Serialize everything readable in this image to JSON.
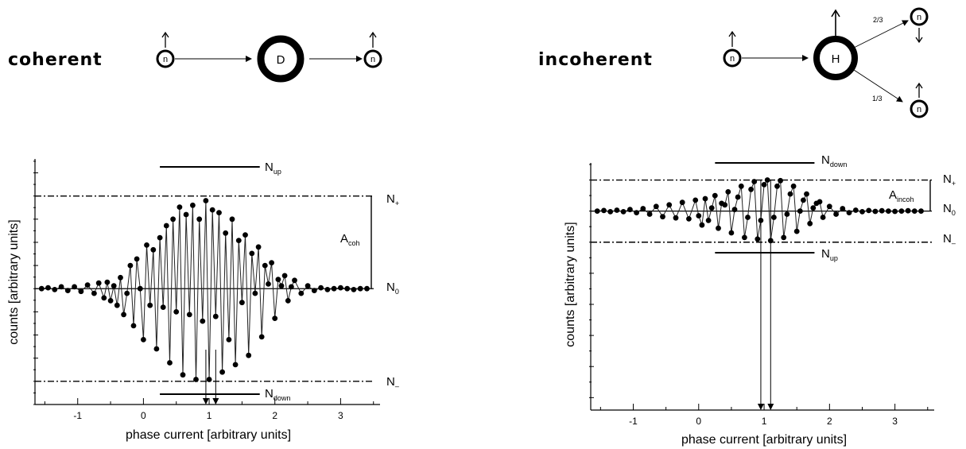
{
  "panels": {
    "coherent": {
      "title": "coherent",
      "target_node": "D",
      "neutron": "n",
      "lines": {
        "plus": "N",
        "plus_sub": "+",
        "zero": "N",
        "zero_sub": "0",
        "minus": "N",
        "minus_sub": "–",
        "bar_top": "N",
        "bar_top_sub": "up",
        "bar_bottom": "N",
        "bar_bottom_sub": "down",
        "amp": "A",
        "amp_sub": "coh"
      }
    },
    "incoherent": {
      "title": "incoherent",
      "target_node": "H",
      "neutron": "n",
      "branch_up": "2/3",
      "branch_down": "1/3",
      "lines": {
        "plus": "N",
        "plus_sub": "+",
        "zero": "N",
        "zero_sub": "0",
        "minus": "N",
        "minus_sub": "–",
        "bar_top": "N",
        "bar_top_sub": "down",
        "bar_bottom": "N",
        "bar_bottom_sub": "up",
        "amp": "A",
        "amp_sub": "incoh"
      }
    }
  },
  "chart_data": [
    {
      "type": "scatter",
      "title": "coherent",
      "xlabel": "phase current  [arbitrary units]",
      "ylabel": "counts  [arbitrary units]",
      "xlim": [
        -1.65,
        3.6
      ],
      "x_ticks": [
        -1,
        0,
        1,
        2,
        3
      ],
      "tick_labels": [
        "-1",
        "0",
        "1",
        "2",
        "3"
      ],
      "grid": false,
      "levels": {
        "N+": 1.0,
        "N0": 0.0,
        "N-": -1.0
      },
      "ylim": [
        -1.25,
        1.4
      ],
      "series": [
        {
          "x": [
            -1.55,
            -1.45,
            -1.35,
            -1.25,
            -1.15,
            -1.05,
            -0.95,
            -0.85,
            -0.75,
            -0.68,
            -0.6,
            -0.55,
            -0.5,
            -0.45,
            -0.4,
            -0.35,
            -0.3,
            -0.25,
            -0.2,
            -0.15,
            -0.1,
            -0.05,
            0.0,
            0.05,
            0.1,
            0.15,
            0.2,
            0.25,
            0.3,
            0.35,
            0.4,
            0.45,
            0.5,
            0.55,
            0.6,
            0.65,
            0.7,
            0.75,
            0.8,
            0.85,
            0.9,
            0.95,
            1.0,
            1.05,
            1.1,
            1.15,
            1.2,
            1.25,
            1.3,
            1.35,
            1.4,
            1.45,
            1.5,
            1.55,
            1.6,
            1.65,
            1.7,
            1.75,
            1.8,
            1.85,
            1.9,
            1.95,
            2.0,
            2.05,
            2.1,
            2.15,
            2.2,
            2.25,
            2.3,
            2.4,
            2.5,
            2.6,
            2.7,
            2.8,
            2.9,
            3.0,
            3.1,
            3.2,
            3.3,
            3.4
          ],
          "y": [
            0.0,
            0.01,
            -0.01,
            0.02,
            -0.02,
            0.02,
            -0.03,
            0.04,
            -0.05,
            0.06,
            -0.1,
            0.07,
            -0.13,
            0.03,
            -0.18,
            0.12,
            -0.28,
            -0.05,
            0.25,
            -0.4,
            0.32,
            0.0,
            -0.55,
            0.47,
            -0.18,
            0.42,
            -0.65,
            0.55,
            -0.2,
            0.68,
            -0.8,
            0.75,
            -0.25,
            0.88,
            -0.93,
            0.8,
            -0.28,
            0.9,
            -0.98,
            0.75,
            -0.35,
            0.95,
            -0.98,
            0.85,
            -0.3,
            0.82,
            -0.9,
            0.6,
            -0.55,
            0.75,
            -0.82,
            0.52,
            -0.15,
            0.58,
            -0.72,
            0.38,
            -0.05,
            0.45,
            -0.52,
            0.25,
            0.05,
            0.28,
            -0.32,
            0.1,
            0.03,
            0.14,
            -0.13,
            0.02,
            0.09,
            -0.05,
            0.03,
            -0.02,
            0.01,
            -0.01,
            0.0,
            0.01,
            0.0,
            -0.01,
            0.0,
            0.0
          ]
        }
      ]
    },
    {
      "type": "scatter",
      "title": "incoherent",
      "xlabel": "phase current  [arbitrary units]",
      "ylabel": "counts  [arbitrary units]",
      "xlim": [
        -1.65,
        3.6
      ],
      "x_ticks": [
        -1,
        0,
        1,
        2,
        3
      ],
      "tick_labels": [
        "-1",
        "0",
        "1",
        "2",
        "3"
      ],
      "grid": false,
      "levels": {
        "N+": 1.0,
        "N0": 0.0,
        "N-": -1.0
      },
      "ylim": [
        -6.4,
        1.55
      ],
      "series": [
        {
          "x": [
            -1.55,
            -1.45,
            -1.35,
            -1.25,
            -1.15,
            -1.05,
            -0.95,
            -0.85,
            -0.75,
            -0.65,
            -0.55,
            -0.45,
            -0.35,
            -0.25,
            -0.15,
            -0.05,
            0.0,
            0.05,
            0.1,
            0.15,
            0.2,
            0.25,
            0.3,
            0.35,
            0.4,
            0.45,
            0.5,
            0.55,
            0.6,
            0.65,
            0.7,
            0.75,
            0.8,
            0.85,
            0.9,
            0.95,
            1.0,
            1.05,
            1.1,
            1.15,
            1.2,
            1.25,
            1.3,
            1.35,
            1.4,
            1.45,
            1.5,
            1.55,
            1.6,
            1.65,
            1.7,
            1.75,
            1.8,
            1.85,
            1.9,
            2.0,
            2.1,
            2.2,
            2.3,
            2.4,
            2.5,
            2.6,
            2.7,
            2.8,
            2.9,
            3.0,
            3.1,
            3.2,
            3.3,
            3.4
          ],
          "y": [
            0.0,
            0.02,
            -0.02,
            0.03,
            -0.02,
            0.05,
            -0.05,
            0.08,
            -0.1,
            0.15,
            -0.18,
            0.2,
            -0.22,
            0.28,
            -0.25,
            0.35,
            -0.15,
            -0.45,
            0.4,
            -0.3,
            0.1,
            0.5,
            -0.55,
            0.25,
            0.2,
            0.62,
            -0.7,
            0.05,
            0.45,
            0.8,
            -0.85,
            -0.2,
            0.7,
            0.95,
            -0.9,
            -0.3,
            0.85,
            1.0,
            -0.95,
            -0.2,
            0.8,
            0.98,
            -0.85,
            -0.1,
            0.55,
            0.8,
            -0.65,
            0.0,
            0.35,
            0.55,
            -0.4,
            0.1,
            0.25,
            0.3,
            -0.2,
            0.15,
            -0.1,
            0.08,
            -0.05,
            0.03,
            -0.02,
            0.02,
            -0.01,
            0.01,
            0.0,
            -0.01,
            0.0,
            0.01,
            0.0,
            0.0
          ]
        }
      ]
    }
  ]
}
